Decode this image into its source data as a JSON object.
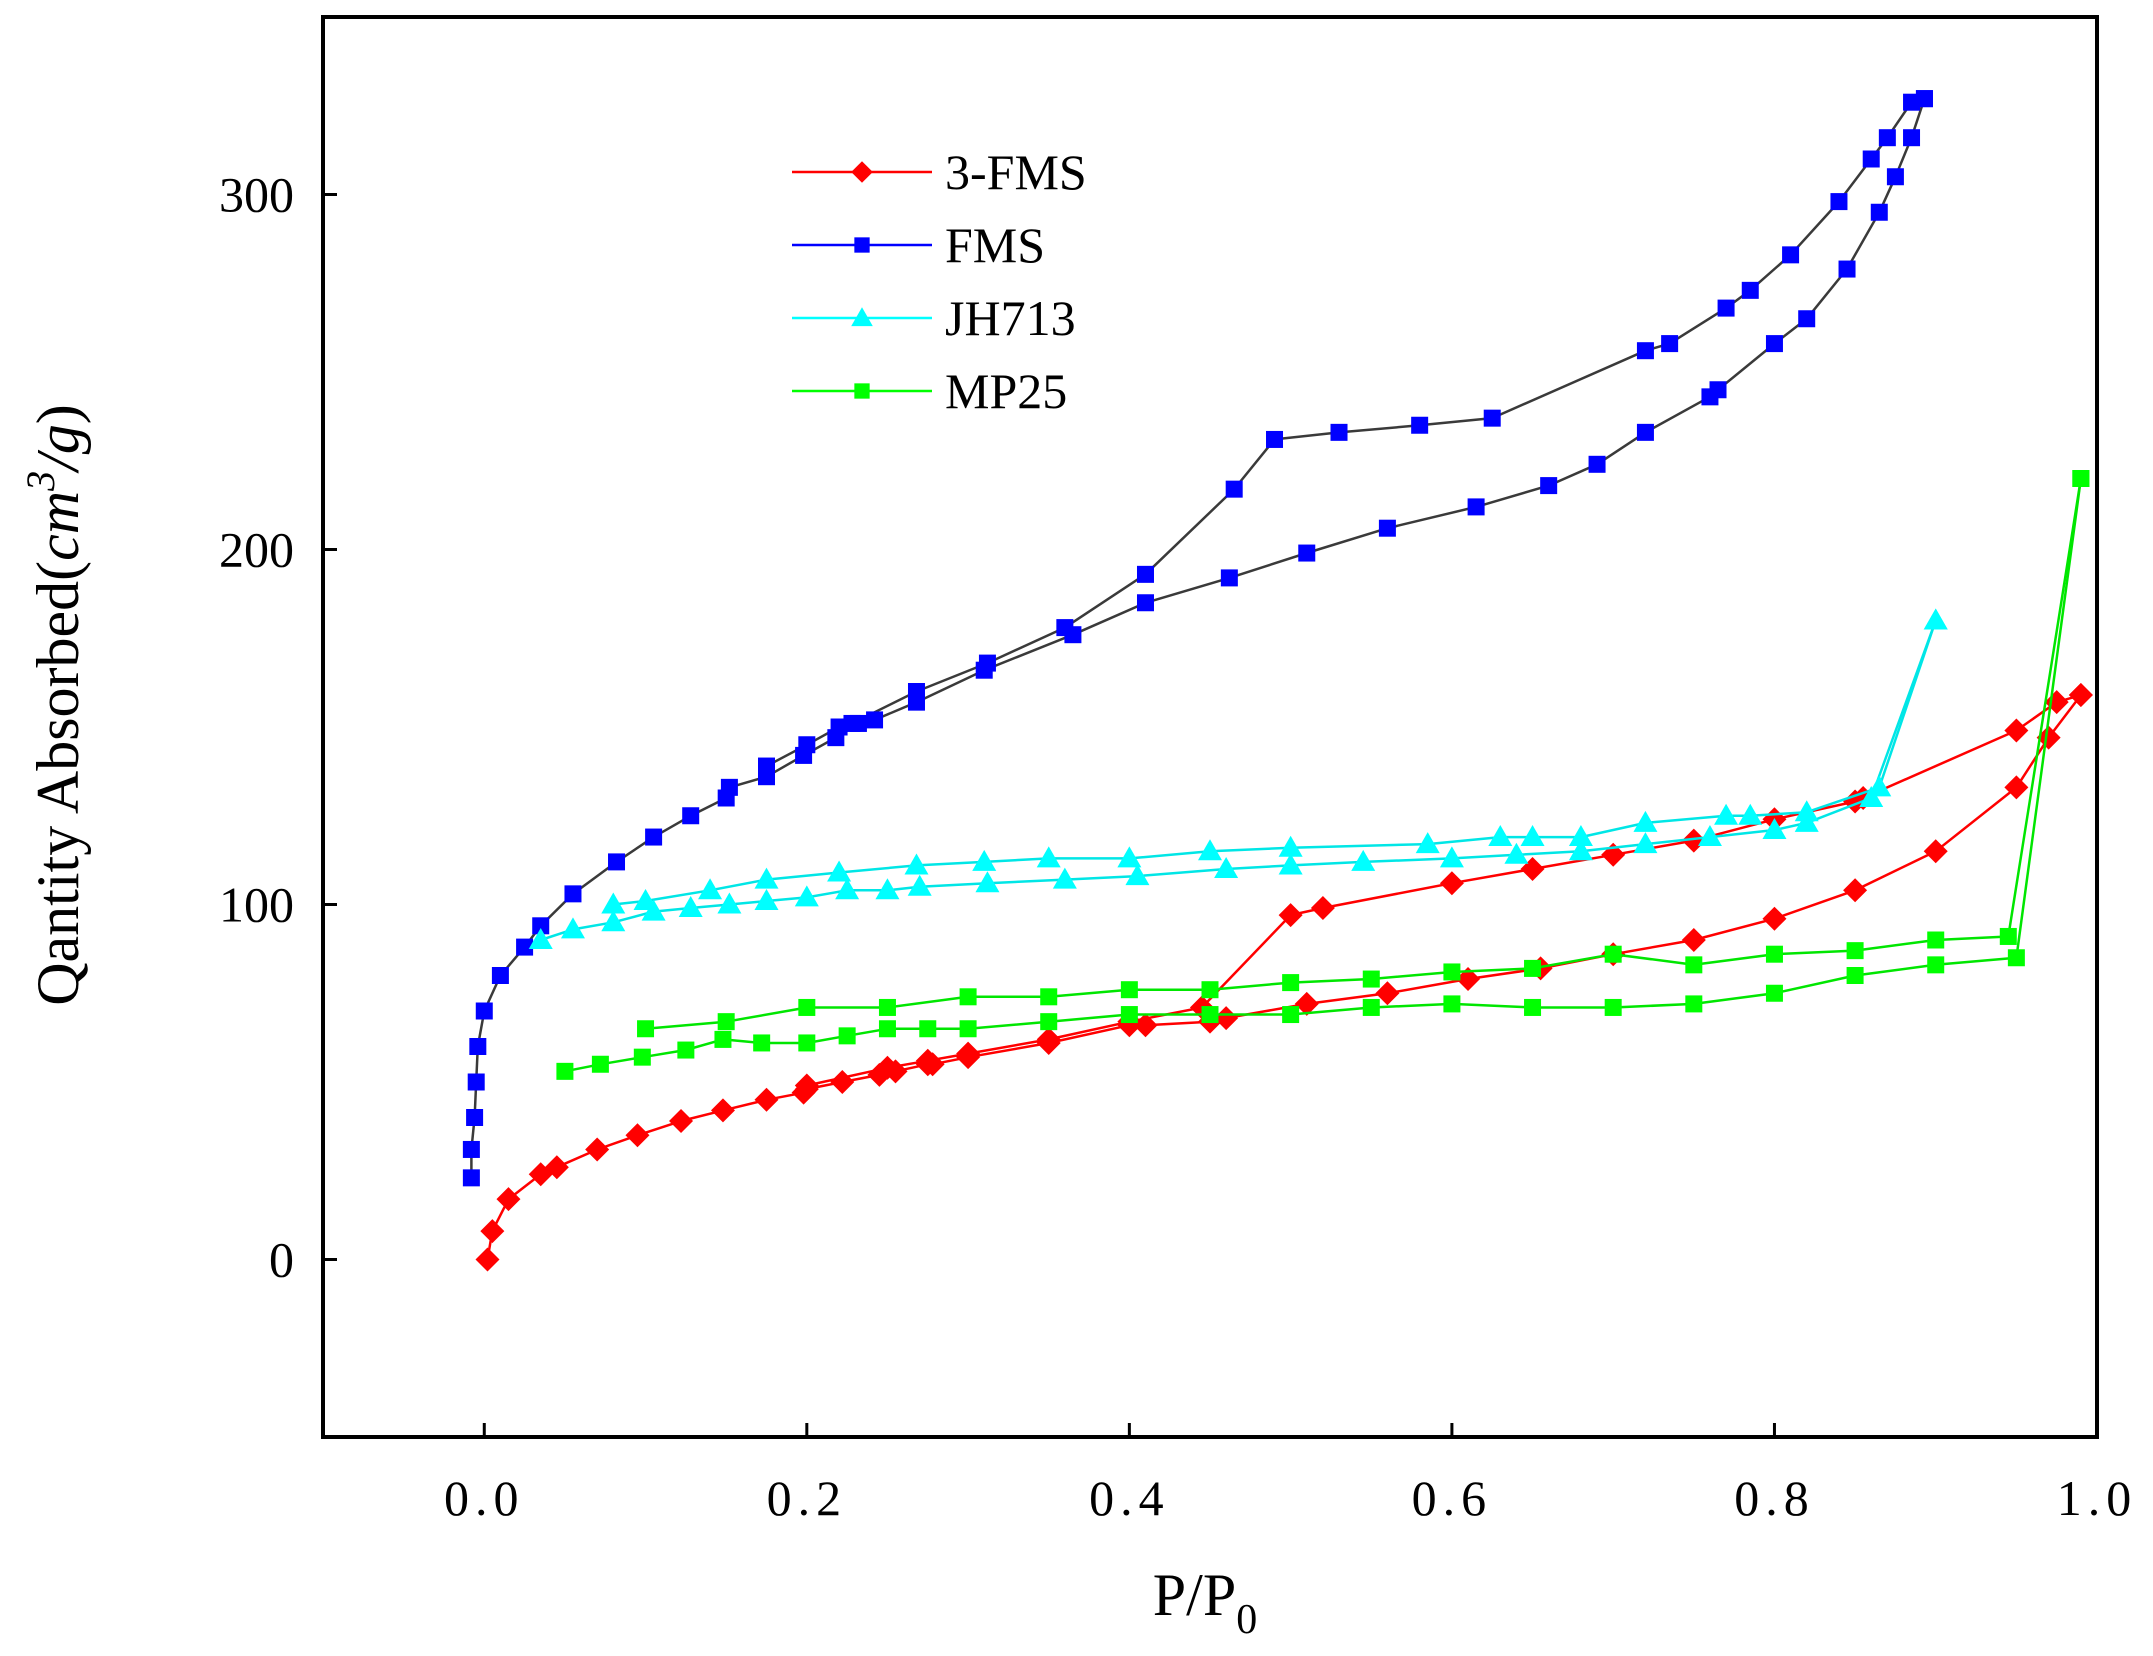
{
  "chart_data": {
    "type": "line",
    "title": "",
    "xlabel": {
      "main": "P/P",
      "sub": "0"
    },
    "ylabel": {
      "main": "Qantity Absorbed(",
      "italic": "cm",
      "sup": "3",
      "tail_italic": "/g",
      "close": ")"
    },
    "xlim": [
      -0.1,
      1.0
    ],
    "ylim": [
      -50,
      350
    ],
    "x_ticks": [
      {
        "value": 0.0,
        "label": "0.0"
      },
      {
        "value": 0.2,
        "label": "0.2"
      },
      {
        "value": 0.4,
        "label": "0.4"
      },
      {
        "value": 0.6,
        "label": "0.6"
      },
      {
        "value": 0.8,
        "label": "0.8"
      },
      {
        "value": 1.0,
        "label": "1.0"
      }
    ],
    "y_ticks": [
      {
        "value": 0,
        "label": "0"
      },
      {
        "value": 100,
        "label": "100"
      },
      {
        "value": 200,
        "label": "200"
      },
      {
        "value": 300,
        "label": "300"
      }
    ],
    "grid": false,
    "legend_position": "top-center",
    "series": [
      {
        "name": "3-FMS",
        "color": "#ff0000",
        "line_color": "#ff0000",
        "marker": "diamond",
        "branches": [
          {
            "kind": "adsorption",
            "x": [
              0.002,
              0.005,
              0.015,
              0.035,
              0.045,
              0.07,
              0.095,
              0.122,
              0.148,
              0.175,
              0.198,
              0.2,
              0.222,
              0.245,
              0.255,
              0.275,
              0.278,
              0.3,
              0.35,
              0.4,
              0.41,
              0.45,
              0.46,
              0.51,
              0.56,
              0.61,
              0.655,
              0.7,
              0.75,
              0.8,
              0.85,
              0.9,
              0.95,
              0.97,
              0.99
            ],
            "y": [
              0,
              8,
              17,
              24,
              26,
              31,
              35,
              39,
              42,
              45,
              47,
              48,
              50,
              52,
              53,
              55,
              55,
              57,
              61,
              66,
              66,
              67,
              68,
              72,
              75,
              79,
              82,
              86,
              90,
              96,
              104,
              115,
              133,
              147,
              159
            ]
          },
          {
            "kind": "desorption",
            "x": [
              0.99,
              0.975,
              0.95,
              0.855,
              0.85,
              0.8,
              0.75,
              0.7,
              0.65,
              0.6,
              0.52,
              0.5,
              0.445,
              0.4,
              0.35,
              0.3,
              0.275,
              0.25,
              0.2
            ],
            "y": [
              159,
              157,
              149,
              130,
              129,
              124,
              118,
              114,
              110,
              106,
              99,
              97,
              71,
              67,
              62,
              58,
              56,
              54,
              49
            ]
          }
        ]
      },
      {
        "name": "FMS",
        "color": "#0000ff",
        "line_color": "#3a3a3a",
        "marker": "square",
        "branches": [
          {
            "kind": "adsorption",
            "x": [
              -0.008,
              -0.008,
              -0.006,
              -0.005,
              -0.004,
              0.0,
              0.01,
              0.025,
              0.035,
              0.055,
              0.082,
              0.105,
              0.128,
              0.15,
              0.152,
              0.175,
              0.198,
              0.218,
              0.232,
              0.242,
              0.268,
              0.31,
              0.365,
              0.41,
              0.462,
              0.51,
              0.56,
              0.615,
              0.66,
              0.69,
              0.72,
              0.76,
              0.765,
              0.8,
              0.82,
              0.845,
              0.865,
              0.875,
              0.885,
              0.893
            ],
            "y": [
              23,
              31,
              40,
              50,
              60,
              70,
              80,
              88,
              94,
              103,
              112,
              119,
              125,
              130,
              133,
              136,
              142,
              147,
              151,
              152,
              157,
              166,
              176,
              185,
              192,
              199,
              206,
              212,
              218,
              224,
              233,
              243,
              245,
              258,
              265,
              279,
              295,
              305,
              316,
              327
            ]
          },
          {
            "kind": "desorption",
            "x": [
              0.893,
              0.885,
              0.87,
              0.86,
              0.84,
              0.81,
              0.785,
              0.77,
              0.735,
              0.72,
              0.625,
              0.58,
              0.53,
              0.49,
              0.465,
              0.41,
              0.36,
              0.312,
              0.268,
              0.228,
              0.22,
              0.2,
              0.175
            ],
            "y": [
              327,
              326,
              316,
              310,
              298,
              283,
              273,
              268,
              258,
              256,
              237,
              235,
              233,
              231,
              217,
              193,
              178,
              168,
              160,
              151,
              150,
              145,
              139
            ]
          }
        ]
      },
      {
        "name": "JH713",
        "color": "#00ffff",
        "line_color": "#00e6e6",
        "marker": "triangle",
        "branches": [
          {
            "kind": "adsorption",
            "x": [
              0.035,
              0.055,
              0.08,
              0.105,
              0.128,
              0.152,
              0.175,
              0.2,
              0.225,
              0.25,
              0.27,
              0.312,
              0.36,
              0.405,
              0.46,
              0.5,
              0.545,
              0.6,
              0.64,
              0.68,
              0.72,
              0.76,
              0.8,
              0.82,
              0.86,
              0.9
            ],
            "y": [
              90,
              93,
              95,
              98,
              99,
              100,
              101,
              102,
              104,
              104,
              105,
              106,
              107,
              108,
              110,
              111,
              112,
              113,
              114,
              115,
              117,
              119,
              121,
              123,
              130,
              180
            ]
          },
          {
            "kind": "desorption",
            "x": [
              0.9,
              0.865,
              0.82,
              0.785,
              0.77,
              0.72,
              0.68,
              0.65,
              0.63,
              0.585,
              0.5,
              0.45,
              0.4,
              0.35,
              0.31,
              0.268,
              0.22,
              0.175,
              0.14,
              0.1,
              0.08
            ],
            "y": [
              180,
              133,
              126,
              125,
              125,
              123,
              119,
              119,
              119,
              117,
              116,
              115,
              113,
              113,
              112,
              111,
              109,
              107,
              104,
              101,
              100
            ]
          }
        ]
      },
      {
        "name": "MP25",
        "color": "#00ff00",
        "line_color": "#00e600",
        "marker": "square",
        "branches": [
          {
            "kind": "adsorption",
            "x": [
              0.05,
              0.072,
              0.098,
              0.125,
              0.148,
              0.172,
              0.2,
              0.225,
              0.25,
              0.275,
              0.3,
              0.35,
              0.4,
              0.45,
              0.5,
              0.55,
              0.6,
              0.65,
              0.7,
              0.75,
              0.8,
              0.85,
              0.9,
              0.95,
              0.99
            ],
            "y": [
              53,
              55,
              57,
              59,
              62,
              61,
              61,
              63,
              65,
              65,
              65,
              67,
              69,
              69,
              69,
              71,
              72,
              71,
              71,
              72,
              75,
              80,
              83,
              85,
              220
            ]
          },
          {
            "kind": "desorption",
            "x": [
              0.99,
              0.945,
              0.9,
              0.85,
              0.8,
              0.75,
              0.7,
              0.65,
              0.6,
              0.55,
              0.5,
              0.45,
              0.4,
              0.35,
              0.3,
              0.25,
              0.2,
              0.15,
              0.1
            ],
            "y": [
              220,
              91,
              90,
              87,
              86,
              83,
              86,
              82,
              81,
              79,
              78,
              76,
              76,
              74,
              74,
              71,
              71,
              67,
              65
            ]
          }
        ]
      }
    ]
  }
}
